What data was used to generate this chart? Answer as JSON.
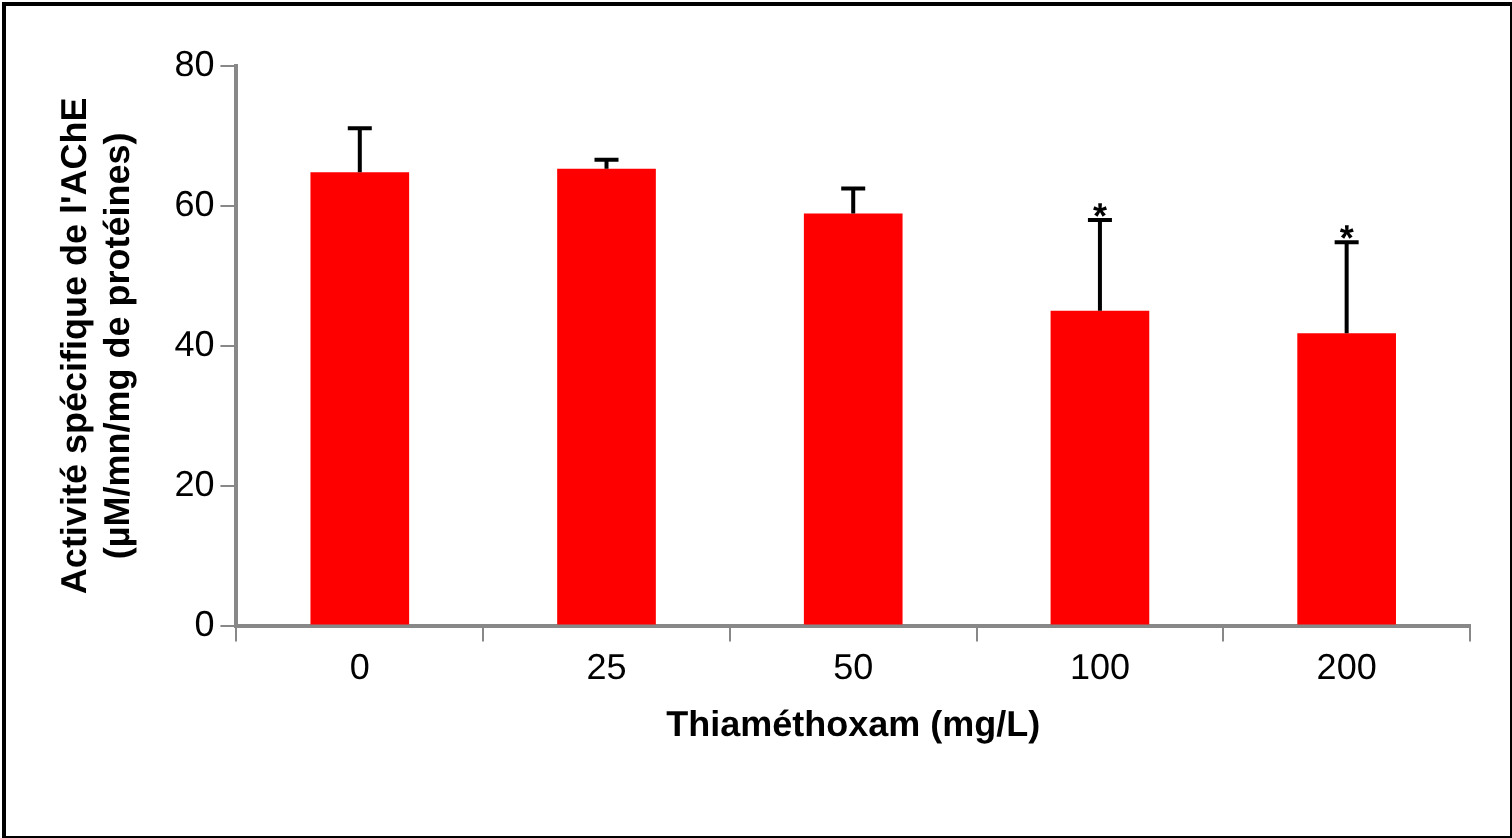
{
  "chart_data": {
    "type": "bar",
    "xlabel": "Thiaméthoxam (mg/L)",
    "ylabel": "Activité spécifique de l'AChE\n(µM/mn/mg de protéines)",
    "categories": [
      "0",
      "25",
      "50",
      "100",
      "200"
    ],
    "values": [
      64.8,
      65.3,
      58.9,
      45.0,
      41.8
    ],
    "errors": [
      [
        64.8,
        71.1
      ],
      [
        65.3,
        66.6
      ],
      [
        58.9,
        62.5
      ],
      [
        45.0,
        58.0
      ],
      [
        41.8,
        54.8
      ]
    ],
    "color": "#ff0000",
    "ylim": [
      0,
      80
    ],
    "yticks": [
      0,
      20,
      40,
      60,
      80
    ],
    "grid": false,
    "legend": false,
    "annotations": [
      {
        "text": "*",
        "x": "100",
        "y": 58
      },
      {
        "text": "*",
        "x": "200",
        "y": 54.8
      }
    ]
  }
}
